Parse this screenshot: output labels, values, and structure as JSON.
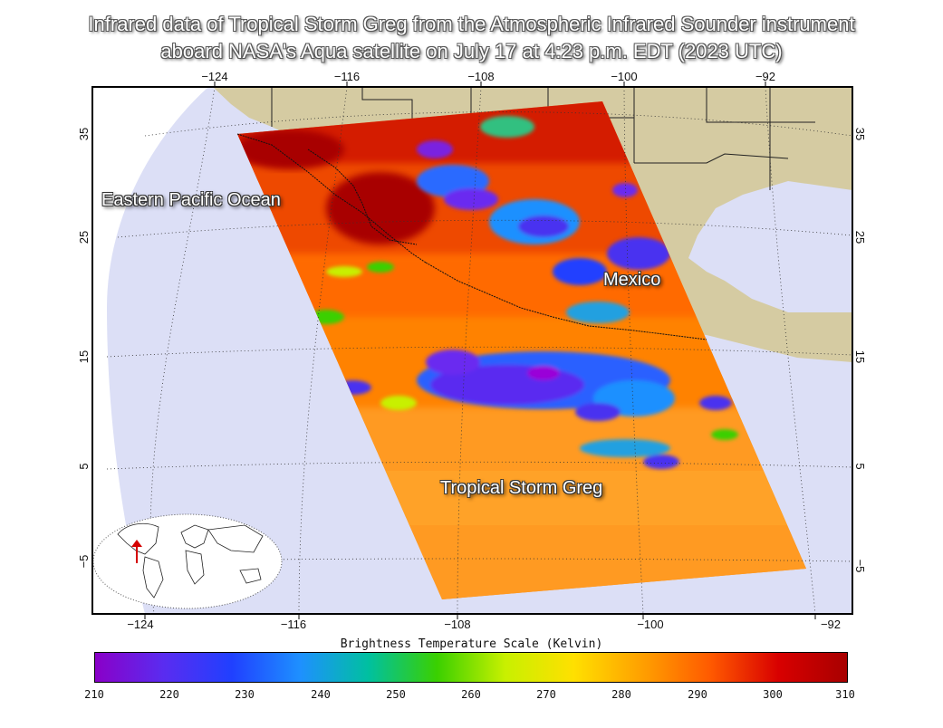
{
  "title": {
    "line1": "Infrared data of Tropical Storm Greg  from the Atmospheric Infrared Sounder instrument",
    "line2": "aboard NASA's Aqua satellite on July 17 at 4:23 p.m. EDT (2023 UTC)"
  },
  "map": {
    "longitude_ticks": [
      "−124",
      "−116",
      "−108",
      "−100",
      "−92"
    ],
    "latitude_ticks": [
      "35",
      "25",
      "15",
      "5",
      "−5"
    ],
    "labels": {
      "ocean": "Eastern Pacific Ocean",
      "country": "Mexico",
      "storm": "Tropical Storm Greg"
    },
    "colors": {
      "ocean": "#dcdff6",
      "land": "#d5cba2",
      "frame": "#000000"
    }
  },
  "colorbar": {
    "title": "Brightness Temperature Scale (Kelvin)",
    "ticks": [
      "210",
      "220",
      "230",
      "240",
      "250",
      "260",
      "270",
      "280",
      "290",
      "300",
      "310"
    ],
    "stops": [
      "#8a00c8",
      "#5a2cf0",
      "#2040ff",
      "#1e90ff",
      "#00c0a0",
      "#3ad000",
      "#c8f000",
      "#ffe000",
      "#ffa000",
      "#ff5a00",
      "#d80000",
      "#a80000"
    ]
  }
}
